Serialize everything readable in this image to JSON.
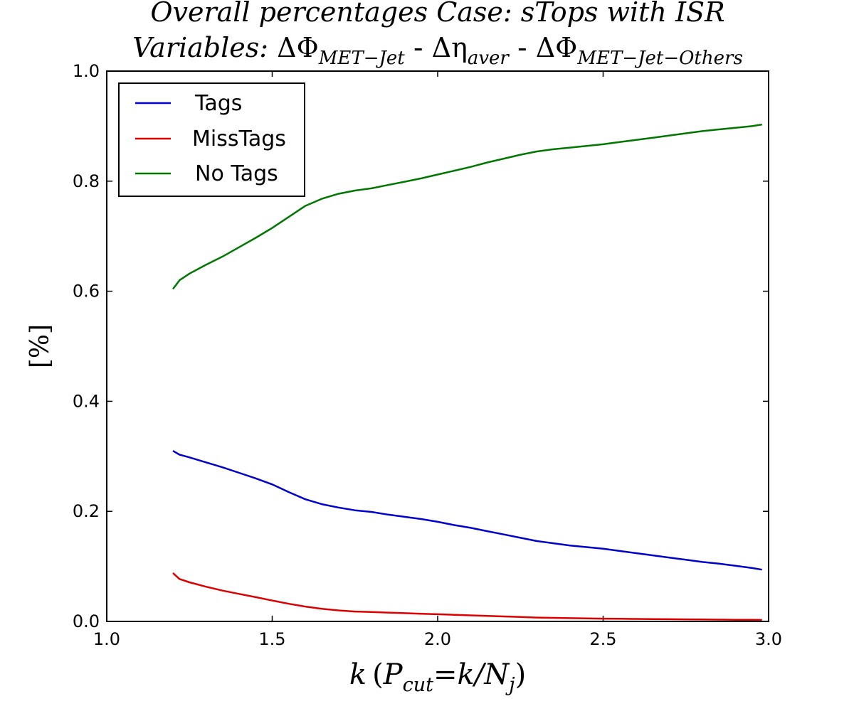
{
  "chart_data": {
    "type": "line",
    "title": {
      "line1": "Overall percentages Case: sTops with ISR",
      "line2_prefix": "Variables: ",
      "var1_symbol": "ΔΦ",
      "var1_sub": "MET−Jet",
      "sep": " - ",
      "var2_symbol": "Δη",
      "var2_sub": "aver",
      "var3_symbol": "ΔΦ",
      "var3_sub": "MET−Jet−Others"
    },
    "xlabel": {
      "k": "k",
      "open": "(",
      "P": "P",
      "P_sub": "cut",
      "eq": "=k/N",
      "N_sub": "j",
      "close": ")"
    },
    "ylabel": "[%]",
    "xlim": [
      1.0,
      3.0
    ],
    "ylim": [
      0.0,
      1.0
    ],
    "xticks": [
      1.0,
      1.5,
      2.0,
      2.5,
      3.0
    ],
    "xtick_labels": [
      "1.0",
      "1.5",
      "2.0",
      "2.5",
      "3.0"
    ],
    "yticks": [
      0.0,
      0.2,
      0.4,
      0.6,
      0.8,
      1.0
    ],
    "ytick_labels": [
      "0.0",
      "0.2",
      "0.4",
      "0.6",
      "0.8",
      "1.0"
    ],
    "grid": false,
    "legend_position": "top-left",
    "x": [
      1.2,
      1.22,
      1.25,
      1.3,
      1.35,
      1.4,
      1.45,
      1.5,
      1.55,
      1.6,
      1.65,
      1.7,
      1.75,
      1.8,
      1.85,
      1.9,
      1.95,
      2.0,
      2.05,
      2.1,
      2.15,
      2.2,
      2.25,
      2.3,
      2.35,
      2.4,
      2.45,
      2.5,
      2.55,
      2.6,
      2.65,
      2.7,
      2.75,
      2.8,
      2.85,
      2.9,
      2.95,
      2.98
    ],
    "series": [
      {
        "name": "Tags",
        "color": "#0000cc",
        "values": [
          0.31,
          0.303,
          0.298,
          0.289,
          0.28,
          0.27,
          0.26,
          0.249,
          0.235,
          0.222,
          0.213,
          0.207,
          0.202,
          0.199,
          0.194,
          0.19,
          0.186,
          0.181,
          0.175,
          0.17,
          0.164,
          0.158,
          0.152,
          0.146,
          0.142,
          0.138,
          0.135,
          0.132,
          0.128,
          0.124,
          0.12,
          0.116,
          0.112,
          0.108,
          0.105,
          0.101,
          0.097,
          0.094
        ]
      },
      {
        "name": "MissTags",
        "color": "#dd0000",
        "values": [
          0.088,
          0.077,
          0.071,
          0.063,
          0.056,
          0.05,
          0.044,
          0.038,
          0.032,
          0.027,
          0.023,
          0.02,
          0.018,
          0.017,
          0.016,
          0.015,
          0.014,
          0.013,
          0.012,
          0.011,
          0.01,
          0.009,
          0.008,
          0.007,
          0.0065,
          0.006,
          0.0055,
          0.005,
          0.0048,
          0.0045,
          0.0042,
          0.004,
          0.0038,
          0.0035,
          0.0032,
          0.003,
          0.0028,
          0.0027
        ]
      },
      {
        "name": "No Tags",
        "color": "#007700",
        "values": [
          0.604,
          0.62,
          0.632,
          0.648,
          0.663,
          0.68,
          0.697,
          0.715,
          0.735,
          0.755,
          0.768,
          0.777,
          0.783,
          0.787,
          0.793,
          0.799,
          0.805,
          0.812,
          0.819,
          0.826,
          0.834,
          0.841,
          0.848,
          0.854,
          0.858,
          0.861,
          0.864,
          0.867,
          0.871,
          0.875,
          0.879,
          0.883,
          0.887,
          0.891,
          0.894,
          0.897,
          0.9,
          0.903
        ]
      }
    ]
  }
}
